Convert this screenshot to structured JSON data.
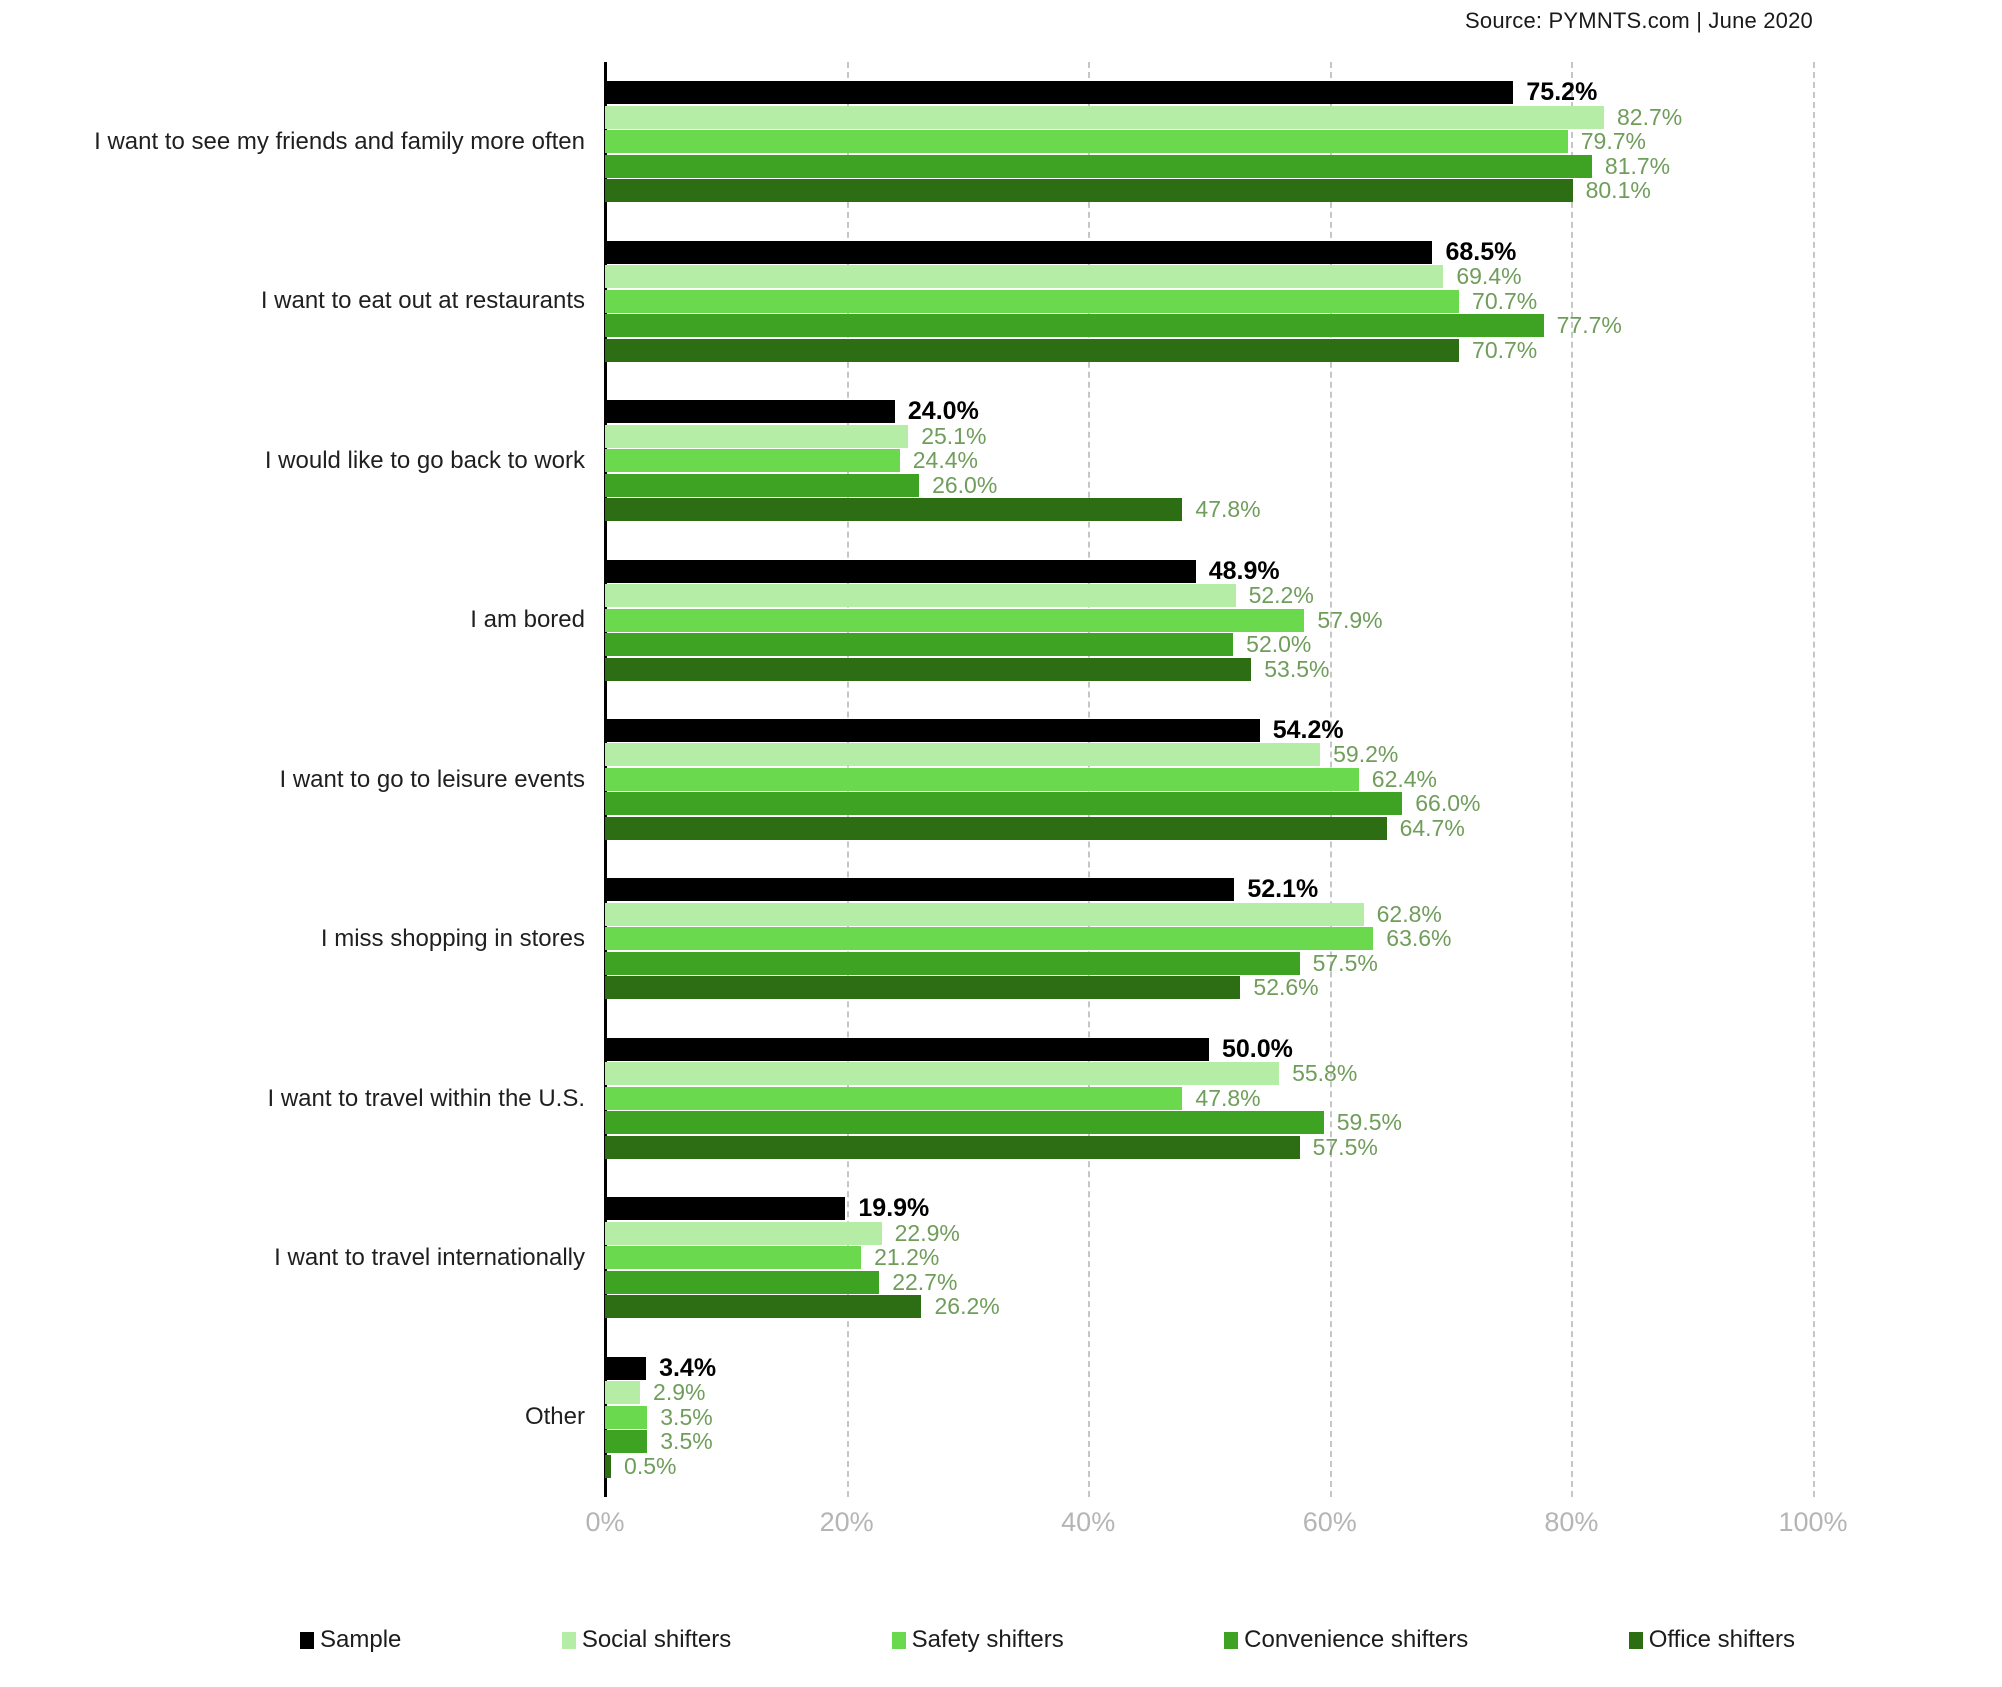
{
  "source": "Source: PYMNTS.com  |  June 2020",
  "chart_data": {
    "type": "bar",
    "orientation": "horizontal",
    "title": "",
    "source_note": "Source: PYMNTS.com | June 2020",
    "categories": [
      "I want to see my friends and family more often",
      "I want to eat out at restaurants",
      "I would like to go back to work",
      "I am bored",
      "I want to go to leisure events",
      "I miss shopping in stores",
      "I want to travel within the U.S.",
      "I want to travel internationally",
      "Other"
    ],
    "series": [
      {
        "name": "Sample",
        "color": "#000000",
        "values": [
          75.2,
          68.5,
          24.0,
          48.9,
          54.2,
          52.1,
          50.0,
          19.9,
          3.4
        ]
      },
      {
        "name": "Social shifters",
        "color": "#b5eca6",
        "values": [
          82.7,
          69.4,
          25.1,
          52.2,
          59.2,
          62.8,
          55.8,
          22.9,
          2.9
        ]
      },
      {
        "name": "Safety shifters",
        "color": "#6bd94e",
        "values": [
          79.7,
          70.7,
          24.4,
          57.9,
          62.4,
          63.6,
          47.8,
          21.2,
          3.5
        ]
      },
      {
        "name": "Convenience shifters",
        "color": "#3ea323",
        "values": [
          81.7,
          77.7,
          26.0,
          52.0,
          66.0,
          57.5,
          59.5,
          22.7,
          3.5
        ]
      },
      {
        "name": "Office shifters",
        "color": "#2d6e15",
        "values": [
          80.1,
          70.7,
          47.8,
          53.5,
          64.7,
          52.6,
          57.5,
          26.2,
          0.5
        ]
      }
    ],
    "xlim": [
      0,
      100
    ],
    "x_ticks": [
      {
        "value": 0,
        "label": "0%"
      },
      {
        "value": 20,
        "label": "20%"
      },
      {
        "value": 40,
        "label": "40%"
      },
      {
        "value": 60,
        "label": "60%"
      },
      {
        "value": 80,
        "label": "80%"
      },
      {
        "value": 100,
        "label": "100%"
      }
    ],
    "value_label_format": "one-decimal-percent",
    "value_label_colors": {
      "sample": "#000000",
      "default": "#6f9d5a"
    },
    "grid": "vertical-dashed",
    "legend_position": "bottom",
    "axis_color": "#000000",
    "gridline_color": "#c6c6c6",
    "tick_label_color": "#b5b5b5"
  }
}
